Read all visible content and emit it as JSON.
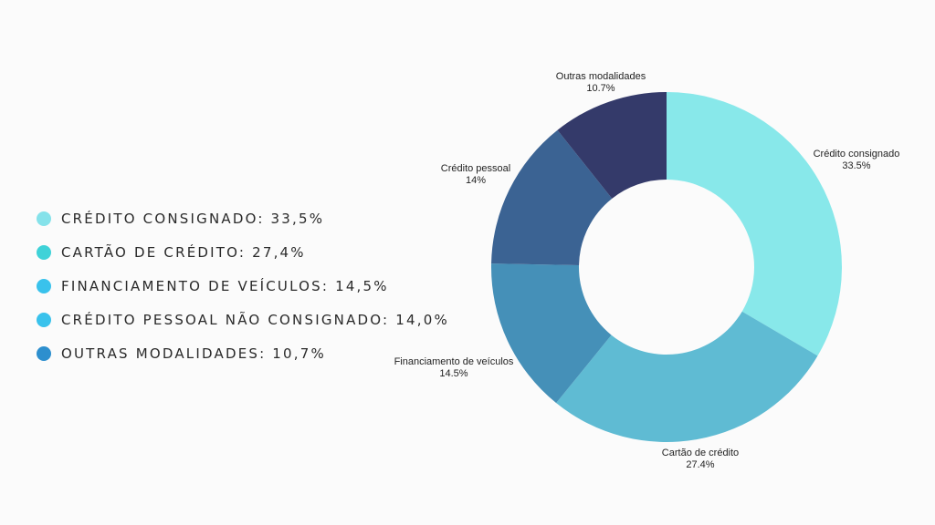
{
  "legend": [
    {
      "label": "CRÉDITO CONSIGNADO: 33,5%",
      "color": "#85e2ea"
    },
    {
      "label": "CARTÃO DE CRÉDITO: 27,4%",
      "color": "#3fd2d8"
    },
    {
      "label": "FINANCIAMENTO DE VEÍCULOS: 14,5%",
      "color": "#39c2ec"
    },
    {
      "label": "CRÉDITO PESSOAL NÃO CONSIGNADO: 14,0%",
      "color": "#39c2ec"
    },
    {
      "label": "OUTRAS MODALIDADES: 10,7%",
      "color": "#2d8fce"
    }
  ],
  "chart_data": {
    "type": "pie",
    "variant": "donut",
    "slices": [
      {
        "name": "Crédito consignado",
        "value": 33.5,
        "value_label": "33.5%",
        "color": "#88e8ea"
      },
      {
        "name": "Cartão de crédito",
        "value": 27.4,
        "value_label": "27.4%",
        "color": "#5fbbd3"
      },
      {
        "name": "Financiamento de veículos",
        "value": 14.5,
        "value_label": "14.5%",
        "color": "#4590b8"
      },
      {
        "name": "Crédito pessoal",
        "value": 14.0,
        "value_label": "14%",
        "color": "#3b6393"
      },
      {
        "name": "Outras modalidades",
        "value": 10.7,
        "value_label": "10.7%",
        "color": "#343a6a"
      }
    ]
  }
}
